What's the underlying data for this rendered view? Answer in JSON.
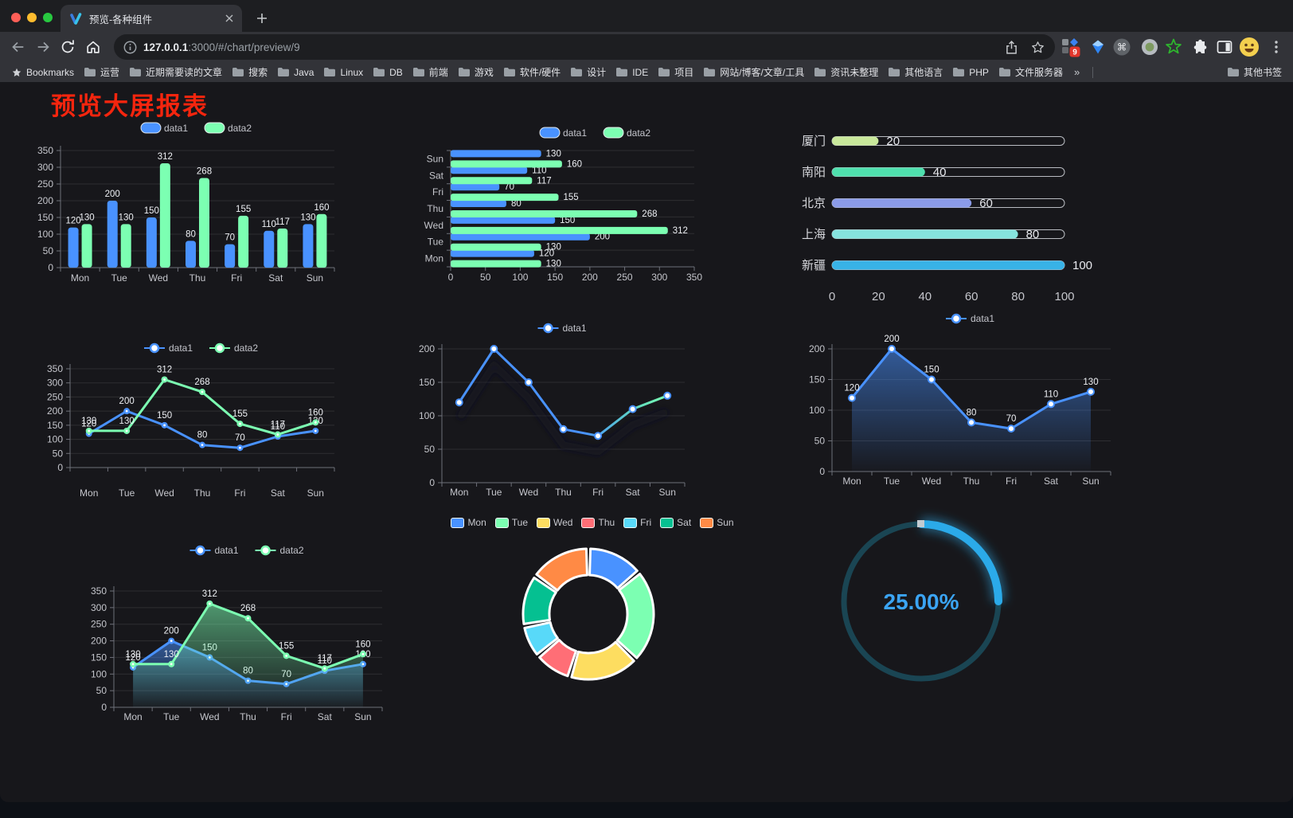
{
  "browser": {
    "tab_title": "预览-各种组件",
    "url_host": "127.0.0.1",
    "url_rest": ":3000/#/chart/preview/9",
    "extension_badge": "9",
    "bookmarks_label": "Bookmarks",
    "bookmarks": [
      "运营",
      "近期需要读的文章",
      "搜索",
      "Java",
      "Linux",
      "DB",
      "前端",
      "游戏",
      "软件/硬件",
      "设计",
      "IDE",
      "项目",
      "网站/博客/文章/工具",
      "资讯未整理",
      "其他语言",
      "PHP",
      "文件服务器"
    ],
    "overflow_chevron": "»",
    "other_bookmarks": "其他书签"
  },
  "page": {
    "title": "预览大屏报表",
    "title_color": "#f5250e"
  },
  "chart_data": [
    {
      "id": "bar-grouped",
      "type": "bar",
      "categories": [
        "Mon",
        "Tue",
        "Wed",
        "Thu",
        "Fri",
        "Sat",
        "Sun"
      ],
      "series": [
        {
          "name": "data1",
          "color": "#4992ff",
          "values": [
            120,
            200,
            150,
            80,
            70,
            110,
            130
          ]
        },
        {
          "name": "data2",
          "color": "#7cffb2",
          "values": [
            130,
            130,
            312,
            268,
            155,
            117,
            160
          ]
        }
      ],
      "ylim": [
        0,
        350
      ],
      "ystep": 50,
      "value_labels": true,
      "legend_position": "top",
      "grid": true
    },
    {
      "id": "bar-horizontal",
      "type": "bar-horizontal",
      "categories": [
        "Mon",
        "Tue",
        "Wed",
        "Thu",
        "Fri",
        "Sat",
        "Sun"
      ],
      "series": [
        {
          "name": "data1",
          "color": "#4992ff",
          "values": [
            120,
            200,
            150,
            80,
            70,
            110,
            130
          ]
        },
        {
          "name": "data2",
          "color": "#7cffb2",
          "values": [
            130,
            130,
            312,
            268,
            155,
            117,
            160
          ]
        }
      ],
      "xlim": [
        0,
        350
      ],
      "xstep": 50,
      "value_labels": true,
      "legend_position": "top",
      "grid": true
    },
    {
      "id": "capsule-progress",
      "type": "capsule-bar",
      "categories": [
        "厦门",
        "南阳",
        "北京",
        "上海",
        "新疆"
      ],
      "values": [
        20,
        40,
        60,
        80,
        100
      ],
      "colors": [
        "#c9e89b",
        "#4fe0ae",
        "#8b9be8",
        "#86e3de",
        "#38b2e6"
      ],
      "xlim": [
        0,
        100
      ],
      "xticks": [
        0,
        20,
        40,
        60,
        80,
        100
      ],
      "value_labels": true
    },
    {
      "id": "line-dual",
      "type": "line",
      "categories": [
        "Mon",
        "Tue",
        "Wed",
        "Thu",
        "Fri",
        "Sat",
        "Sun"
      ],
      "series": [
        {
          "name": "data1",
          "color": "#4992ff",
          "marker": "solid",
          "values": [
            120,
            200,
            150,
            80,
            70,
            110,
            130
          ]
        },
        {
          "name": "data2",
          "color": "#7cffb2",
          "marker": "solid",
          "values": [
            130,
            130,
            312,
            268,
            155,
            117,
            160
          ]
        }
      ],
      "ylim": [
        0,
        350
      ],
      "ystep": 50,
      "value_labels": true,
      "legend_position": "top",
      "grid": true
    },
    {
      "id": "line-gradient",
      "type": "line",
      "categories": [
        "Mon",
        "Tue",
        "Wed",
        "Thu",
        "Fri",
        "Sat",
        "Sun"
      ],
      "series": [
        {
          "name": "data1",
          "color": "#4992ff",
          "marker": "hollow",
          "shadow": true,
          "gradient": [
            "#4992ff",
            "#7cffb2"
          ],
          "values": [
            120,
            200,
            150,
            80,
            70,
            110,
            130
          ]
        }
      ],
      "ylim": [
        0,
        200
      ],
      "ystep": 50,
      "value_labels": false,
      "legend_position": "top",
      "grid": true
    },
    {
      "id": "area-single",
      "type": "area",
      "categories": [
        "Mon",
        "Tue",
        "Wed",
        "Thu",
        "Fri",
        "Sat",
        "Sun"
      ],
      "series": [
        {
          "name": "data1",
          "color": "#4992ff",
          "marker": "hollow",
          "area": true,
          "values": [
            120,
            200,
            150,
            80,
            70,
            110,
            130
          ]
        }
      ],
      "ylim": [
        0,
        200
      ],
      "ystep": 50,
      "value_labels": true,
      "legend_position": "top",
      "grid": true
    },
    {
      "id": "area-dual",
      "type": "area",
      "categories": [
        "Mon",
        "Tue",
        "Wed",
        "Thu",
        "Fri",
        "Sat",
        "Sun"
      ],
      "series": [
        {
          "name": "data1",
          "color": "#4992ff",
          "marker": "solid",
          "area": true,
          "values": [
            120,
            200,
            150,
            80,
            70,
            110,
            130
          ]
        },
        {
          "name": "data2",
          "color": "#7cffb2",
          "marker": "solid",
          "area": true,
          "values": [
            130,
            130,
            312,
            268,
            155,
            117,
            160
          ]
        }
      ],
      "ylim": [
        0,
        350
      ],
      "ystep": 50,
      "value_labels": true,
      "legend_position": "top",
      "grid": true
    },
    {
      "id": "donut",
      "type": "pie",
      "categories": [
        "Mon",
        "Tue",
        "Wed",
        "Thu",
        "Fri",
        "Sat",
        "Sun"
      ],
      "values": [
        120,
        200,
        150,
        80,
        70,
        110,
        130
      ],
      "colors": [
        "#4992ff",
        "#7cffb2",
        "#fddd60",
        "#ff6e76",
        "#58d9f9",
        "#05c091",
        "#ff8a45"
      ],
      "legend_position": "top",
      "inner_radius_ratio": 0.6,
      "border_color": "#ffffff"
    },
    {
      "id": "gauge",
      "type": "gauge",
      "value": 25,
      "max": 100,
      "label": "25.00%",
      "color": "#2baae9",
      "track_color": "#1a4553",
      "label_color": "#3ba4f3"
    }
  ]
}
